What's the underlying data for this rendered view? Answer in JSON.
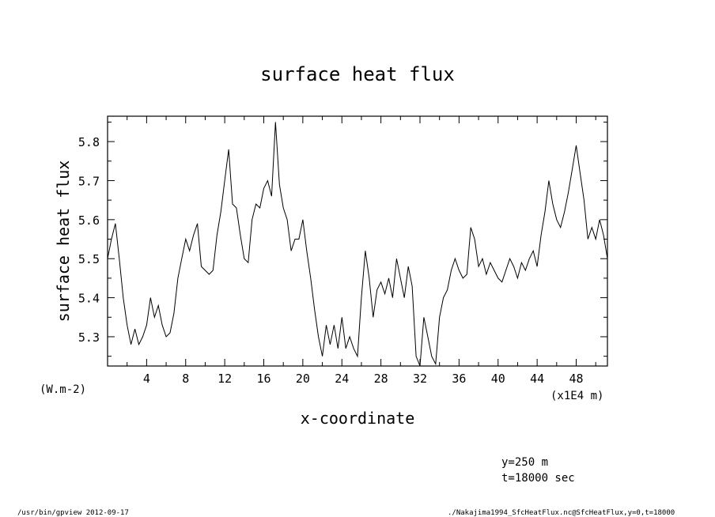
{
  "chart_data": {
    "type": "line",
    "title": "surface heat flux",
    "xlabel": "x-coordinate",
    "ylabel": "surface heat flux",
    "x_unit": "(x1E4 m)",
    "y_unit": "(W.m-2)",
    "xlim": [
      0,
      51.2
    ],
    "ylim": [
      5.225,
      5.865
    ],
    "x_ticks": [
      4,
      8,
      12,
      16,
      20,
      24,
      28,
      32,
      36,
      40,
      44,
      48
    ],
    "y_ticks": [
      5.3,
      5.4,
      5.5,
      5.6,
      5.7,
      5.8
    ],
    "x_tick_labels": [
      "4",
      "8",
      "12",
      "16",
      "20",
      "24",
      "28",
      "32",
      "36",
      "40",
      "44",
      "48"
    ],
    "y_tick_labels": [
      "5.3",
      "5.4",
      "5.5",
      "5.6",
      "5.7",
      "5.8"
    ],
    "grid": false,
    "series": [
      {
        "x": [
          0,
          0.4,
          0.8,
          1.2,
          1.6,
          2.0,
          2.4,
          2.8,
          3.2,
          3.6,
          4.0,
          4.4,
          4.8,
          5.2,
          5.6,
          6.0,
          6.4,
          6.8,
          7.2,
          7.6,
          8.0,
          8.4,
          8.8,
          9.2,
          9.6,
          10.0,
          10.4,
          10.8,
          11.2,
          11.6,
          12.0,
          12.4,
          12.8,
          13.2,
          13.6,
          14.0,
          14.4,
          14.8,
          15.2,
          15.6,
          16.0,
          16.4,
          16.8,
          17.2,
          17.6,
          18.0,
          18.4,
          18.8,
          19.2,
          19.6,
          20.0,
          20.4,
          20.8,
          21.2,
          21.6,
          22.0,
          22.4,
          22.8,
          23.2,
          23.6,
          24.0,
          24.4,
          24.8,
          25.2,
          25.6,
          26.0,
          26.4,
          26.8,
          27.2,
          27.6,
          28.0,
          28.4,
          28.8,
          29.2,
          29.6,
          30.0,
          30.4,
          30.8,
          31.2,
          31.6,
          32.0,
          32.4,
          32.8,
          33.2,
          33.6,
          34.0,
          34.4,
          34.8,
          35.2,
          35.6,
          36.0,
          36.4,
          36.8,
          37.2,
          37.6,
          38.0,
          38.4,
          38.8,
          39.2,
          39.6,
          40.0,
          40.4,
          40.8,
          41.2,
          41.6,
          42.0,
          42.4,
          42.8,
          43.2,
          43.6,
          44.0,
          44.4,
          44.8,
          45.2,
          45.6,
          46.0,
          46.4,
          46.8,
          47.2,
          47.6,
          48.0,
          48.4,
          48.8,
          49.2,
          49.6,
          50.0,
          50.4,
          50.8,
          51.2
        ],
        "y": [
          5.5,
          5.55,
          5.59,
          5.5,
          5.4,
          5.33,
          5.28,
          5.32,
          5.28,
          5.3,
          5.33,
          5.4,
          5.35,
          5.38,
          5.33,
          5.3,
          5.31,
          5.36,
          5.45,
          5.5,
          5.55,
          5.52,
          5.56,
          5.59,
          5.48,
          5.47,
          5.46,
          5.47,
          5.56,
          5.62,
          5.7,
          5.78,
          5.64,
          5.63,
          5.56,
          5.5,
          5.49,
          5.6,
          5.64,
          5.63,
          5.68,
          5.7,
          5.66,
          5.85,
          5.69,
          5.63,
          5.6,
          5.52,
          5.55,
          5.55,
          5.6,
          5.52,
          5.45,
          5.37,
          5.3,
          5.25,
          5.33,
          5.28,
          5.33,
          5.27,
          5.35,
          5.27,
          5.3,
          5.27,
          5.25,
          5.4,
          5.52,
          5.45,
          5.35,
          5.42,
          5.44,
          5.41,
          5.45,
          5.4,
          5.5,
          5.45,
          5.4,
          5.48,
          5.43,
          5.25,
          5.22,
          5.35,
          5.3,
          5.25,
          5.23,
          5.35,
          5.4,
          5.42,
          5.47,
          5.5,
          5.47,
          5.45,
          5.46,
          5.58,
          5.55,
          5.48,
          5.5,
          5.46,
          5.49,
          5.47,
          5.45,
          5.44,
          5.47,
          5.5,
          5.48,
          5.45,
          5.49,
          5.47,
          5.5,
          5.52,
          5.48,
          5.56,
          5.62,
          5.7,
          5.64,
          5.6,
          5.58,
          5.62,
          5.67,
          5.73,
          5.79,
          5.72,
          5.65,
          5.55,
          5.58,
          5.55,
          5.6,
          5.56,
          5.5
        ]
      }
    ]
  },
  "annotations": {
    "position": "y=250 m",
    "time": "t=18000 sec"
  },
  "footer": {
    "left": "/usr/bin/gpview   2012-09-17",
    "right": "./Nakajima1994_SfcHeatFlux.nc@SfcHeatFlux,y=0,t=18000"
  },
  "colors": {
    "line": "#000000",
    "background": "#ffffff"
  }
}
